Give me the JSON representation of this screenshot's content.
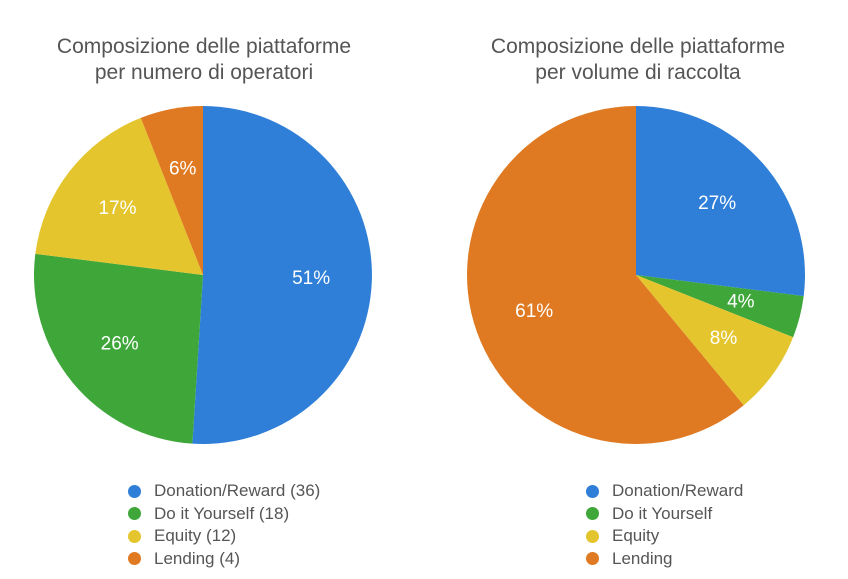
{
  "colors": {
    "Donation/Reward": "#2f7fd8",
    "Do it Yourself": "#3fa73a",
    "Equity": "#e4c52e",
    "Lending": "#e07a22"
  },
  "chart_data": [
    {
      "type": "pie",
      "title": "Composizione delle piattaforme\nper numero di operatori",
      "slices": [
        {
          "name": "Donation/Reward",
          "value": 51,
          "label": "51%"
        },
        {
          "name": "Do it Yourself",
          "value": 26,
          "label": "26%"
        },
        {
          "name": "Equity",
          "value": 17,
          "label": "17%"
        },
        {
          "name": "Lending",
          "value": 6,
          "label": "6%"
        }
      ],
      "legend": [
        "Donation/Reward (36)",
        "Do it Yourself (18)",
        "Equity (12)",
        "Lending (4)"
      ],
      "legend_position": "bottom"
    },
    {
      "type": "pie",
      "title": "Composizione delle piattaforme\nper volume di raccolta",
      "slices": [
        {
          "name": "Donation/Reward",
          "value": 27,
          "label": "27%"
        },
        {
          "name": "Do it Yourself",
          "value": 4,
          "label": "4%"
        },
        {
          "name": "Equity",
          "value": 8,
          "label": "8%"
        },
        {
          "name": "Lending",
          "value": 61,
          "label": "61%"
        }
      ],
      "legend": [
        "Donation/Reward",
        "Do it Yourself",
        "Equity",
        "Lending"
      ],
      "legend_position": "bottom"
    }
  ]
}
